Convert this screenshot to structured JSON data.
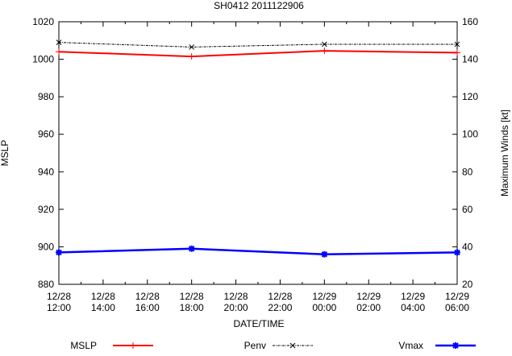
{
  "chart_data": {
    "type": "line",
    "title": "SH0412 2011122906",
    "xlabel": "DATE/TIME",
    "ylabel": "MSLP",
    "y2label": "Maximum Winds [kt]",
    "x_ticks": [
      [
        "12/28",
        "12:00"
      ],
      [
        "12/28",
        "14:00"
      ],
      [
        "12/28",
        "16:00"
      ],
      [
        "12/28",
        "18:00"
      ],
      [
        "12/28",
        "20:00"
      ],
      [
        "12/28",
        "22:00"
      ],
      [
        "12/29",
        "00:00"
      ],
      [
        "12/29",
        "02:00"
      ],
      [
        "12/29",
        "04:00"
      ],
      [
        "12/29",
        "06:00"
      ]
    ],
    "x_hours_range": [
      0,
      18
    ],
    "ylim": [
      880,
      1020
    ],
    "y_ticks": [
      880,
      900,
      920,
      940,
      960,
      980,
      1000,
      1020
    ],
    "y2lim": [
      20,
      160
    ],
    "y2_ticks": [
      20,
      40,
      60,
      80,
      100,
      120,
      140,
      160
    ],
    "x_hours": [
      0,
      6,
      12,
      18
    ],
    "series": [
      {
        "name": "MSLP",
        "axis": "left",
        "color": "#ff0000",
        "marker": "plus",
        "values": [
          1004,
          1001.5,
          1004.5,
          1003.5
        ]
      },
      {
        "name": "Penv",
        "axis": "left",
        "color": "#000000",
        "marker": "cross",
        "dashed": true,
        "values": [
          1009,
          1006.5,
          1008,
          1008
        ]
      },
      {
        "name": "Vmax",
        "axis": "right",
        "color": "#0000ff",
        "marker": "star",
        "values": [
          37,
          39,
          36,
          37
        ]
      }
    ],
    "legend_placement": "bottom"
  }
}
